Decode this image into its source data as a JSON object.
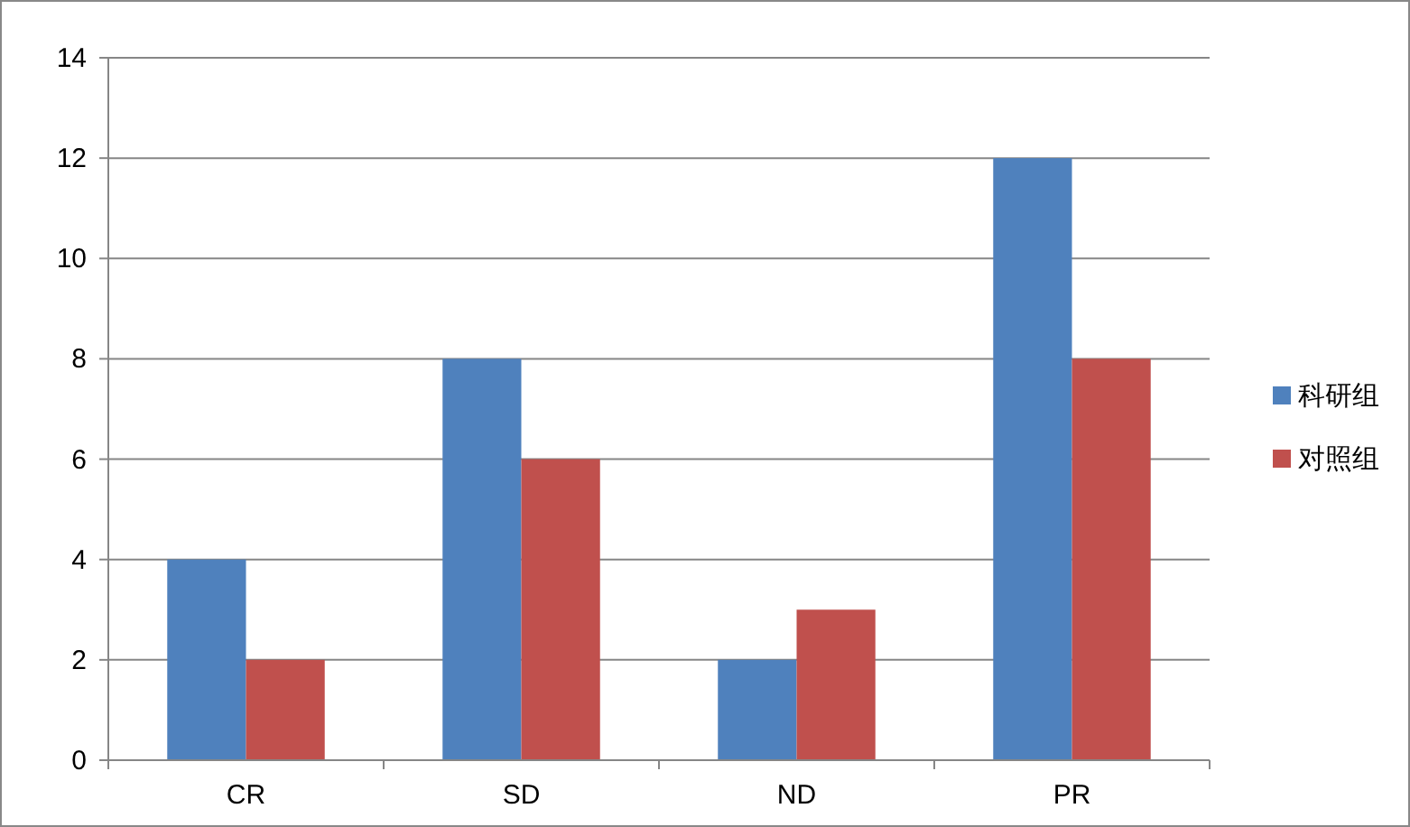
{
  "chart_data": {
    "type": "bar",
    "categories": [
      "CR",
      "SD",
      "ND",
      "PR"
    ],
    "series": [
      {
        "name": "科研组",
        "color": "#4f81bd",
        "values": [
          4,
          8,
          2,
          12
        ]
      },
      {
        "name": "对照组",
        "color": "#c0504d",
        "values": [
          2,
          6,
          3,
          8
        ]
      }
    ],
    "ylim": [
      0,
      14
    ],
    "yticks": [
      0,
      2,
      4,
      6,
      8,
      10,
      12,
      14
    ],
    "grid": "y",
    "legend": "right"
  }
}
